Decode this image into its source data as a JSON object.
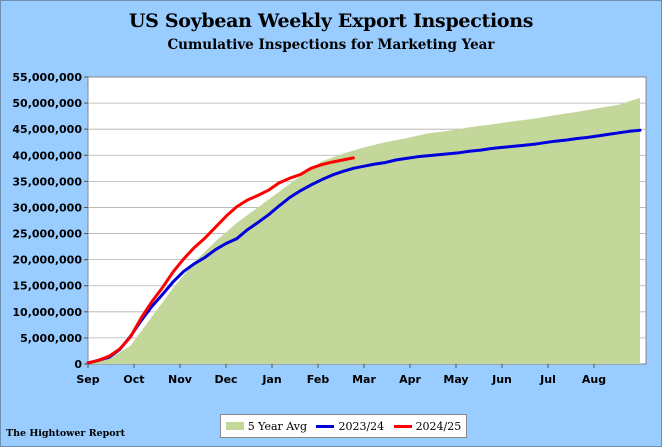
{
  "chart_data": {
    "type": "area",
    "title": "US Soybean Weekly Export Inspections",
    "subtitle": "Cumulative  Inspections for Marketing Year",
    "xlabel": "",
    "ylabel": "",
    "ylim": [
      0,
      55000000
    ],
    "y_ticks": [
      0,
      5000000,
      10000000,
      15000000,
      20000000,
      25000000,
      30000000,
      35000000,
      40000000,
      45000000,
      50000000,
      55000000
    ],
    "y_tick_labels": [
      "0",
      "5,000,000",
      "10,000,000",
      "15,000,000",
      "20,000,000",
      "25,000,000",
      "30,000,000",
      "35,000,000",
      "40,000,000",
      "45,000,000",
      "50,000,000",
      "55,000,000"
    ],
    "x_labels": [
      "Sep",
      "Oct",
      "Nov",
      "Dec",
      "Jan",
      "Feb",
      "Mar",
      "Apr",
      "May",
      "Jun",
      "Jul",
      "Aug"
    ],
    "x_range_weeks": [
      0,
      52
    ],
    "grid": "horizontal",
    "legend_position": "bottom",
    "series": [
      {
        "name": "5 Year Avg",
        "style": "area",
        "color": "#c4d79b",
        "x": [
          0,
          2,
          4,
          6,
          8,
          10,
          12,
          14,
          16,
          18,
          20,
          22,
          24,
          26,
          28,
          30,
          32,
          34,
          36,
          38,
          40,
          42,
          44,
          46,
          48,
          50,
          52
        ],
        "values": [
          0,
          1000000,
          3500000,
          9000000,
          14500000,
          19500000,
          23500000,
          27000000,
          30000000,
          33000000,
          36000000,
          38800000,
          40300000,
          41500000,
          42500000,
          43300000,
          44200000,
          44700000,
          45400000,
          45900000,
          46500000,
          47000000,
          47700000,
          48300000,
          49000000,
          49700000,
          51000000
        ]
      },
      {
        "name": "2023/24",
        "style": "line",
        "color": "#0000dd",
        "x": [
          0,
          1,
          2,
          3,
          4,
          5,
          6,
          7,
          8,
          9,
          10,
          11,
          12,
          13,
          14,
          15,
          16,
          17,
          18,
          19,
          20,
          21,
          22,
          23,
          24,
          25,
          26,
          27,
          28,
          29,
          30,
          31,
          32,
          33,
          34,
          35,
          36,
          37,
          38,
          39,
          40,
          41,
          42,
          43,
          44,
          45,
          46,
          47,
          48,
          49,
          50,
          51,
          52
        ],
        "values": [
          200000,
          700000,
          1300000,
          2800000,
          5300000,
          8300000,
          11000000,
          13300000,
          15700000,
          17700000,
          19200000,
          20400000,
          21900000,
          23100000,
          24000000,
          25700000,
          27100000,
          28600000,
          30300000,
          31900000,
          33200000,
          34300000,
          35300000,
          36200000,
          36900000,
          37500000,
          37900000,
          38300000,
          38600000,
          39100000,
          39400000,
          39700000,
          39900000,
          40100000,
          40300000,
          40500000,
          40800000,
          41000000,
          41300000,
          41500000,
          41700000,
          41900000,
          42100000,
          42400000,
          42700000,
          42900000,
          43200000,
          43400000,
          43700000,
          44000000,
          44300000,
          44600000,
          44800000
        ]
      },
      {
        "name": "2024/25",
        "style": "line",
        "color": "#ff0000",
        "x": [
          0,
          1,
          2,
          3,
          4,
          5,
          6,
          7,
          8,
          9,
          10,
          11,
          12,
          13,
          14,
          15,
          16,
          17,
          18,
          19,
          20,
          21,
          22,
          23,
          24,
          25
        ],
        "values": [
          200000,
          700000,
          1500000,
          2900000,
          5200000,
          8800000,
          11900000,
          14600000,
          17600000,
          20100000,
          22300000,
          24100000,
          26200000,
          28300000,
          30100000,
          31400000,
          32300000,
          33300000,
          34700000,
          35600000,
          36300000,
          37500000,
          38200000,
          38700000,
          39100000,
          39500000
        ]
      }
    ]
  },
  "legend": {
    "items": [
      "5 Year Avg",
      "2023/24",
      "2024/25"
    ]
  },
  "footer": "The Hightower Report"
}
